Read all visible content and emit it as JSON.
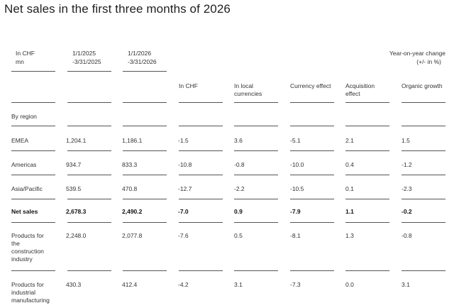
{
  "title": "Net sales in the first three months of 2026",
  "headers": {
    "unit": [
      "In CHF",
      "mn"
    ],
    "col_2025": [
      "1/1/2025",
      "-3/31/2025"
    ],
    "col_2026": [
      "1/1/2026",
      "-3/31/2026"
    ],
    "yoy": [
      "Year-on-year change",
      "(+/- in %)"
    ],
    "in_chf": "In CHF",
    "local": [
      "In local",
      "currencies"
    ],
    "currency": "Currency effect",
    "acquisition": [
      "Acquisition",
      "effect"
    ],
    "organic": "Organic growth"
  },
  "section_label": "By region",
  "rows": [
    {
      "label": [
        "EMEA"
      ],
      "v2025": "1,204.1",
      "v2026": "1,186.1",
      "chf": "-1.5",
      "local": "3.6",
      "currency": "-5.1",
      "acq": "2.1",
      "organic": "1.5"
    },
    {
      "label": [
        "Americas"
      ],
      "v2025": "934.7",
      "v2026": "833.3",
      "chf": "-10.8",
      "local": "-0.8",
      "currency": "-10.0",
      "acq": "0.4",
      "organic": "-1.2"
    },
    {
      "label": [
        "Asia/Pacific"
      ],
      "v2025": "539.5",
      "v2026": "470.8",
      "chf": "-12.7",
      "local": "-2.2",
      "currency": "-10.5",
      "acq": "0.1",
      "organic": "-2.3"
    },
    {
      "label": [
        "Net sales"
      ],
      "v2025": "2,678.3",
      "v2026": "2,490.2",
      "chf": "-7.0",
      "local": "0.9",
      "currency": "-7.9",
      "acq": "1.1",
      "organic": "-0.2"
    },
    {
      "label": [
        "Products for",
        "the",
        "construction",
        "industry"
      ],
      "v2025": "2,248.0",
      "v2026": "2,077.8",
      "chf": "-7.6",
      "local": "0.5",
      "currency": "-8.1",
      "acq": "1.3",
      "organic": "-0.8"
    },
    {
      "label": [
        "Products for",
        "industrial",
        "manufacturing"
      ],
      "v2025": "430.3",
      "v2026": "412.4",
      "chf": "-4.2",
      "local": "3.1",
      "currency": "-7.3",
      "acq": "0.0",
      "organic": "3.1"
    }
  ]
}
